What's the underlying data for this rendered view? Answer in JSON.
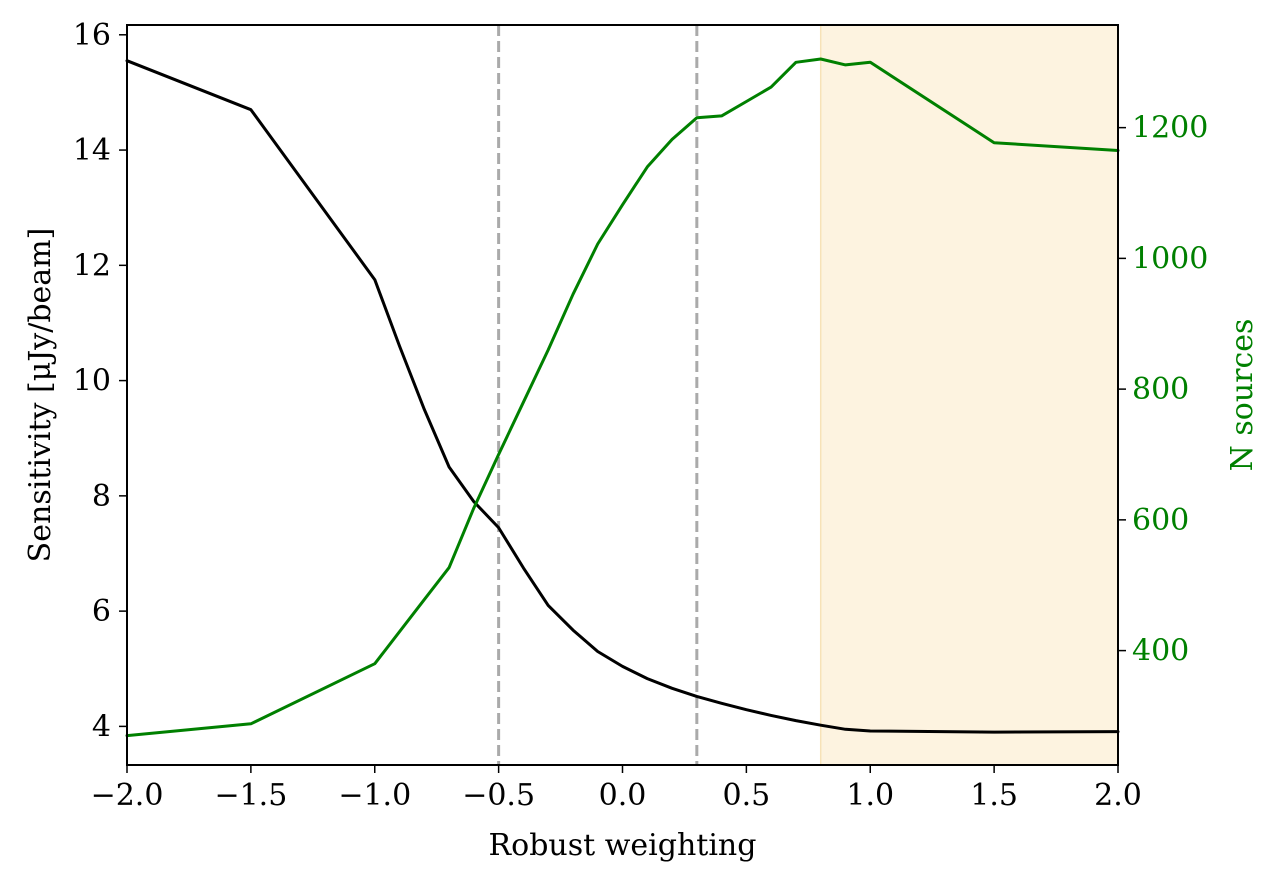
{
  "chart_data": {
    "type": "line",
    "xlabel": "Robust weighting",
    "ylabel": "Sensitivity [μJy/beam]",
    "y2label": "N sources",
    "xlim": [
      -2.0,
      2.0
    ],
    "ylim": [
      3.33,
      16.17
    ],
    "y2lim": [
      225,
      1357
    ],
    "xticks": [
      -2.0,
      -1.5,
      -1.0,
      -0.5,
      0.0,
      0.5,
      1.0,
      1.5,
      2.0
    ],
    "xtick_labels": [
      "−2.0",
      "−1.5",
      "−1.0",
      "−0.5",
      "0.0",
      "0.5",
      "1.0",
      "1.5",
      "2.0"
    ],
    "yticks": [
      4,
      6,
      8,
      10,
      12,
      14,
      16
    ],
    "ytick_labels": [
      "4",
      "6",
      "8",
      "10",
      "12",
      "14",
      "16"
    ],
    "y2ticks": [
      400,
      600,
      800,
      1000,
      1200
    ],
    "y2tick_labels": [
      "400",
      "600",
      "800",
      "1000",
      "1200"
    ],
    "vlines": [
      -0.5,
      0.3
    ],
    "shaded_region": [
      0.8,
      2.0
    ],
    "grid": false,
    "colors": {
      "sensitivity": "#000000",
      "n_sources": "#008000",
      "vline": "#aaaaaa",
      "shade": "#fdf3e0"
    },
    "series": [
      {
        "axis": "left",
        "x": [
          -2.0,
          -1.5,
          -1.0,
          -0.9,
          -0.8,
          -0.7,
          -0.6,
          -0.5,
          -0.4,
          -0.3,
          -0.2,
          -0.1,
          0.0,
          0.1,
          0.2,
          0.3,
          0.4,
          0.5,
          0.6,
          0.7,
          0.8,
          0.9,
          1.0,
          1.5,
          2.0
        ],
        "values": [
          15.55,
          14.7,
          11.75,
          10.6,
          9.5,
          8.5,
          7.9,
          7.45,
          6.75,
          6.1,
          5.67,
          5.3,
          5.04,
          4.83,
          4.66,
          4.52,
          4.4,
          4.29,
          4.19,
          4.1,
          4.02,
          3.95,
          3.92,
          3.9,
          3.91
        ]
      },
      {
        "axis": "right",
        "x": [
          -2.0,
          -1.5,
          -1.0,
          -0.8,
          -0.7,
          -0.6,
          -0.5,
          -0.4,
          -0.3,
          -0.2,
          -0.1,
          0.0,
          0.1,
          0.2,
          0.3,
          0.4,
          0.5,
          0.6,
          0.7,
          0.8,
          0.9,
          1.0,
          1.5,
          2.0
        ],
        "values": [
          270,
          288,
          380,
          478,
          527,
          618,
          700,
          780,
          860,
          945,
          1022,
          1082,
          1140,
          1182,
          1215,
          1218,
          1240,
          1262,
          1300,
          1305,
          1296,
          1300,
          1177,
          1165
        ]
      }
    ]
  }
}
